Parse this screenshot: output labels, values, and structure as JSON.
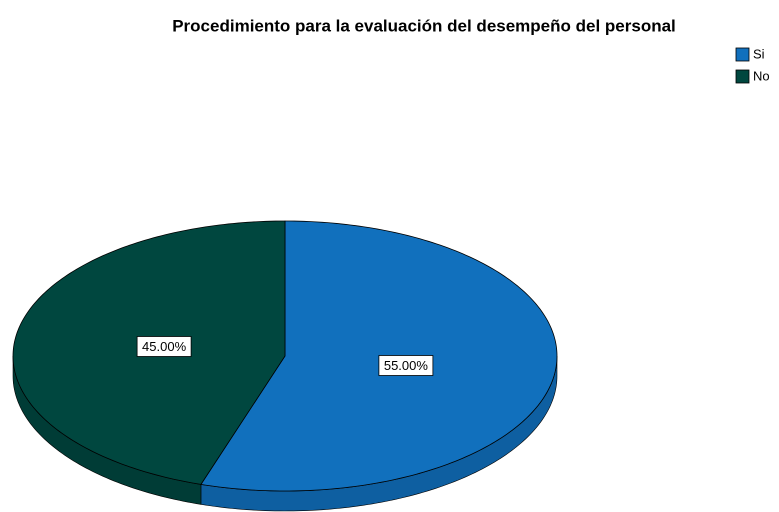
{
  "chart_data": {
    "type": "pie",
    "title": "Procedimiento para la evaluación del desempeño del personal",
    "categories": [
      "Si",
      "No"
    ],
    "values": [
      55,
      45
    ],
    "value_labels": [
      "55.00%",
      "45.00%"
    ],
    "colors": [
      "#1170bd",
      "#00473f"
    ],
    "legend": "top-right"
  }
}
